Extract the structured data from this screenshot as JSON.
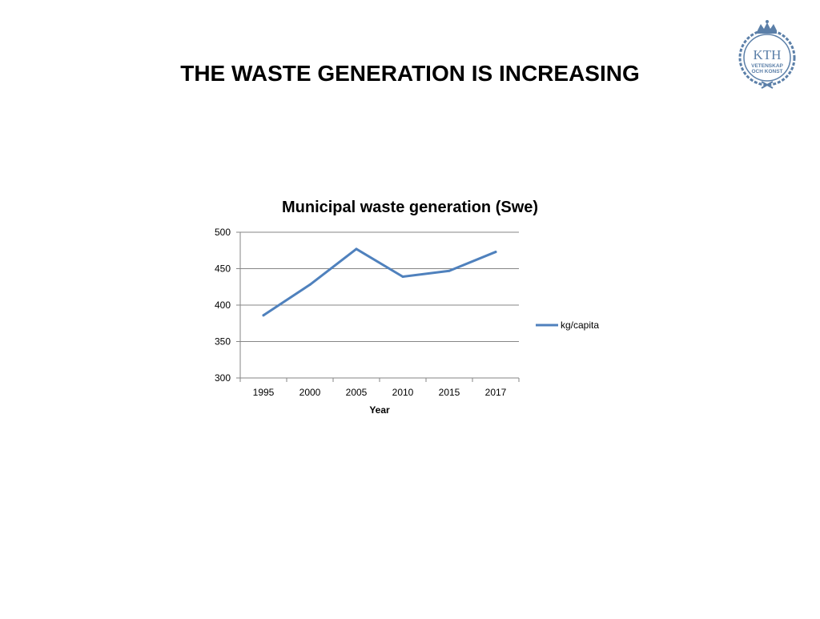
{
  "slide": {
    "title": "THE WASTE GENERATION IS INCREASING"
  },
  "logo": {
    "text_main": "KTH",
    "text_line1": "VETENSKAP",
    "text_line2": "OCH KONST",
    "color": "#5b7fa8"
  },
  "chart_data": {
    "type": "line",
    "title": "Municipal waste generation (Swe)",
    "xlabel": "Year",
    "ylabel": "",
    "categories": [
      "1995",
      "2000",
      "2005",
      "2010",
      "2015",
      "2017"
    ],
    "series": [
      {
        "name": "kg/capita",
        "values": [
          386,
          428,
          477,
          439,
          447,
          473
        ],
        "color": "#4f81bd"
      }
    ],
    "ylim": [
      300,
      500
    ],
    "yticks": [
      500,
      450,
      400,
      350,
      300
    ],
    "grid": true,
    "legend": "right"
  }
}
